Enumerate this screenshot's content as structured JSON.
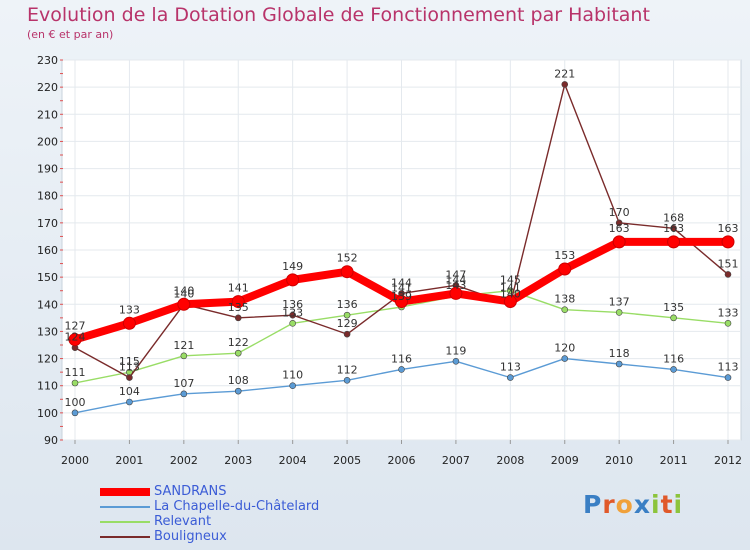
{
  "chart_data": {
    "type": "line",
    "title": "Evolution de la Dotation Globale de Fonctionnement par Habitant",
    "subtitle": "(en € et par an)",
    "x": [
      "2000",
      "2001",
      "2002",
      "2003",
      "2004",
      "2005",
      "2006",
      "2007",
      "2008",
      "2009",
      "2010",
      "2011",
      "2012"
    ],
    "ylim": [
      90,
      230
    ],
    "yticks": [
      90,
      100,
      110,
      120,
      130,
      140,
      150,
      160,
      170,
      180,
      190,
      200,
      210,
      220,
      230
    ],
    "grid": true,
    "series": [
      {
        "name": "SANDRANS",
        "color": "#ff0000",
        "values": [
          127,
          133,
          140,
          141,
          149,
          152,
          141,
          144,
          141,
          153,
          163,
          163,
          163
        ]
      },
      {
        "name": "La Chapelle-du-Châtelard",
        "color": "#5b9bd5",
        "values": [
          100,
          104,
          107,
          108,
          110,
          112,
          116,
          119,
          113,
          120,
          118,
          116,
          113
        ]
      },
      {
        "name": "Relevant",
        "color": "#99dd66",
        "values": [
          111,
          115,
          121,
          122,
          133,
          136,
          139,
          143,
          145,
          138,
          137,
          135,
          133
        ]
      },
      {
        "name": "Bouligneux",
        "color": "#7a2b2b",
        "values": [
          124,
          113,
          140,
          135,
          136,
          129,
          144,
          147,
          140,
          221,
          170,
          168,
          151
        ]
      }
    ]
  },
  "logo": {
    "text": "Proxiti",
    "letters": [
      "P",
      "r",
      "o",
      "x",
      "i",
      "t",
      "i"
    ]
  }
}
